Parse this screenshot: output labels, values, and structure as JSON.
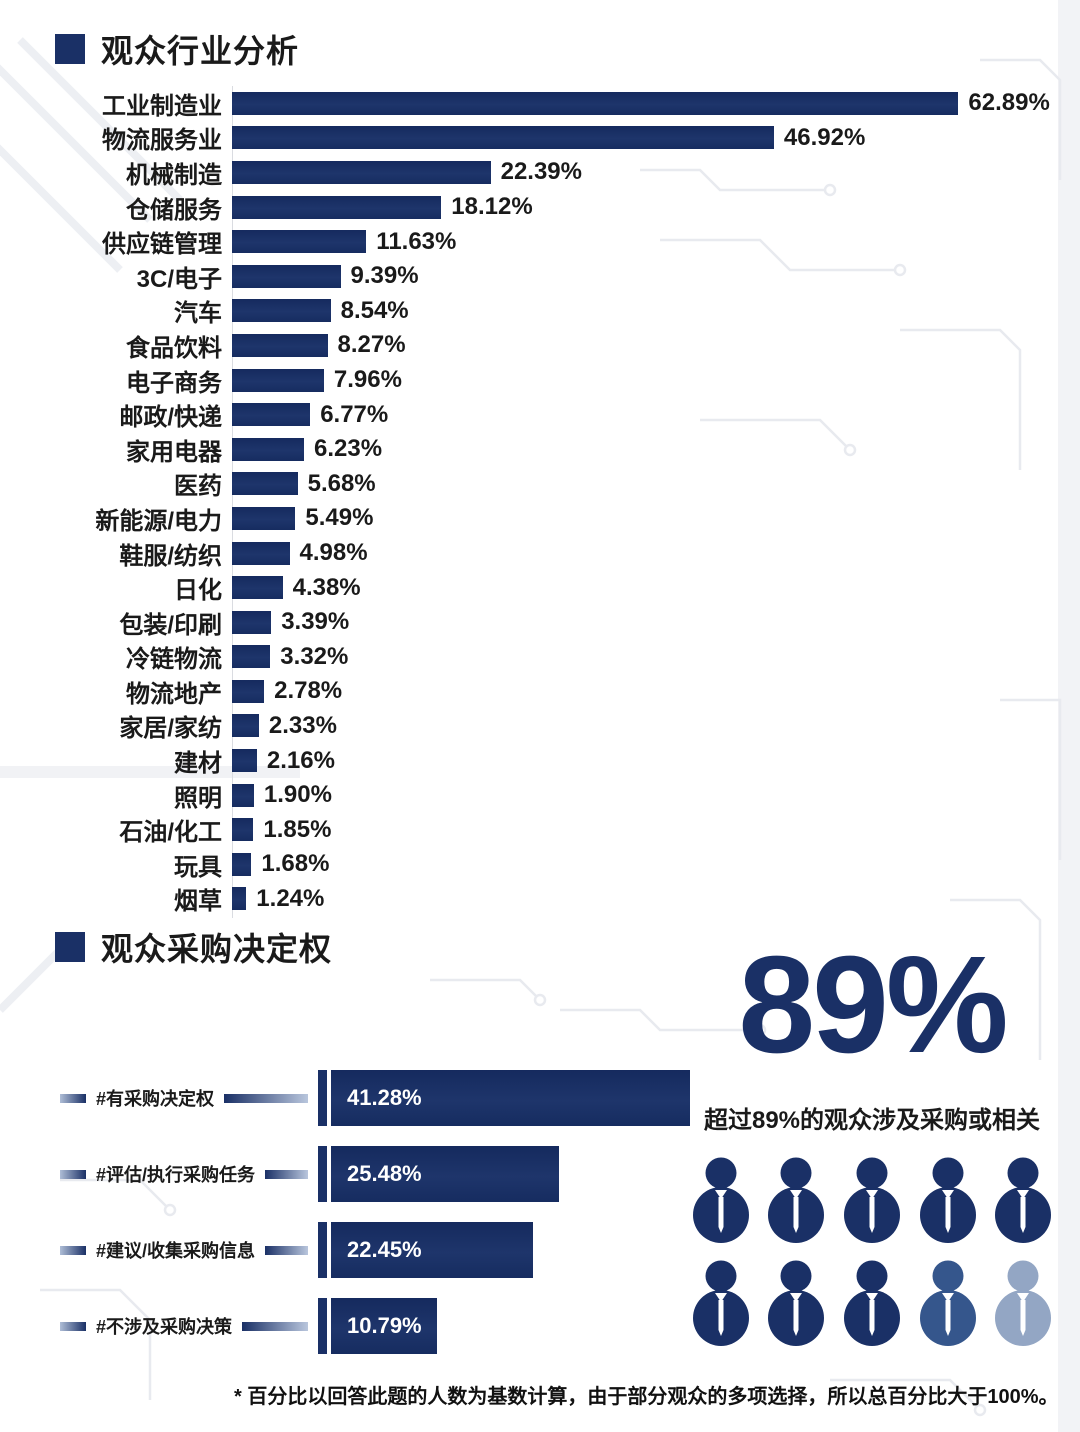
{
  "meta": {
    "accent_navy": "#1a3066",
    "accent_navy_dark": "#15295c",
    "icon_partial_color": "#35568c",
    "icon_faded_color": "#93a6c4",
    "axis_line_color": "#dadce1",
    "text_color": "#1a1a1a"
  },
  "sections": {
    "industry": {
      "title": "观众行业分析"
    },
    "purchase": {
      "title": "观众采购决定权",
      "highlight": "89%",
      "caption": "超过89%的观众涉及采购或相关"
    }
  },
  "chart_data": [
    {
      "type": "bar",
      "orientation": "horizontal",
      "title": "观众行业分析",
      "xlabel": "",
      "ylabel": "",
      "value_suffix": "%",
      "xlim": [
        0,
        65
      ],
      "grid": false,
      "legend": false,
      "bar_color": "#1a3066",
      "categories": [
        "工业制造业",
        "物流服务业",
        "机械制造",
        "仓储服务",
        "供应链管理",
        "3C/电子",
        "汽车",
        "食品饮料",
        "电子商务",
        "邮政/快递",
        "家用电器",
        "医药",
        "新能源/电力",
        "鞋服/纺织",
        "日化",
        "包装/印刷",
        "冷链物流",
        "物流地产",
        "家居/家纺",
        "建材",
        "照明",
        "石油/化工",
        "玩具",
        "烟草"
      ],
      "values": [
        62.89,
        46.92,
        22.39,
        18.12,
        11.63,
        9.39,
        8.54,
        8.27,
        7.96,
        6.77,
        6.23,
        5.68,
        5.49,
        4.98,
        4.38,
        3.39,
        3.32,
        2.78,
        2.33,
        2.16,
        1.9,
        1.85,
        1.68,
        1.24
      ],
      "labels": [
        "62.89%",
        "46.92%",
        "22.39%",
        "18.12%",
        "11.63%",
        "9.39%",
        "8.54%",
        "8.27%",
        "7.96%",
        "6.77%",
        "6.23%",
        "5.68%",
        "5.49%",
        "4.98%",
        "4.38%",
        "3.39%",
        "3.32%",
        "2.78%",
        "2.33%",
        "2.16%",
        "1.90%",
        "1.85%",
        "1.68%",
        "1.24%"
      ]
    },
    {
      "type": "bar",
      "orientation": "horizontal",
      "title": "观众采购决定权",
      "xlabel": "",
      "ylabel": "",
      "value_suffix": "%",
      "xlim": [
        0,
        45
      ],
      "grid": false,
      "legend": false,
      "bar_color": "#1a3066",
      "value_label_position": "inside",
      "categories": [
        "#有采购决定权",
        "#评估/执行采购任务",
        "#建议/收集采购信息",
        "#不涉及采购决策"
      ],
      "values": [
        41.28,
        25.48,
        22.45,
        10.79
      ],
      "labels": [
        "41.28%",
        "25.48%",
        "22.45%",
        "10.79%"
      ]
    }
  ],
  "people_grid": {
    "total": 10,
    "full": 8,
    "partial": 1,
    "faded": 1,
    "colors": [
      "#1a3066",
      "#1a3066",
      "#1a3066",
      "#1a3066",
      "#1a3066",
      "#1a3066",
      "#1a3066",
      "#1a3066",
      "#35568c",
      "#93a6c4"
    ]
  },
  "footnote": "* 百分比以回答此题的人数为基数计算，由于部分观众的多项选择，所以总百分比大于100%。"
}
